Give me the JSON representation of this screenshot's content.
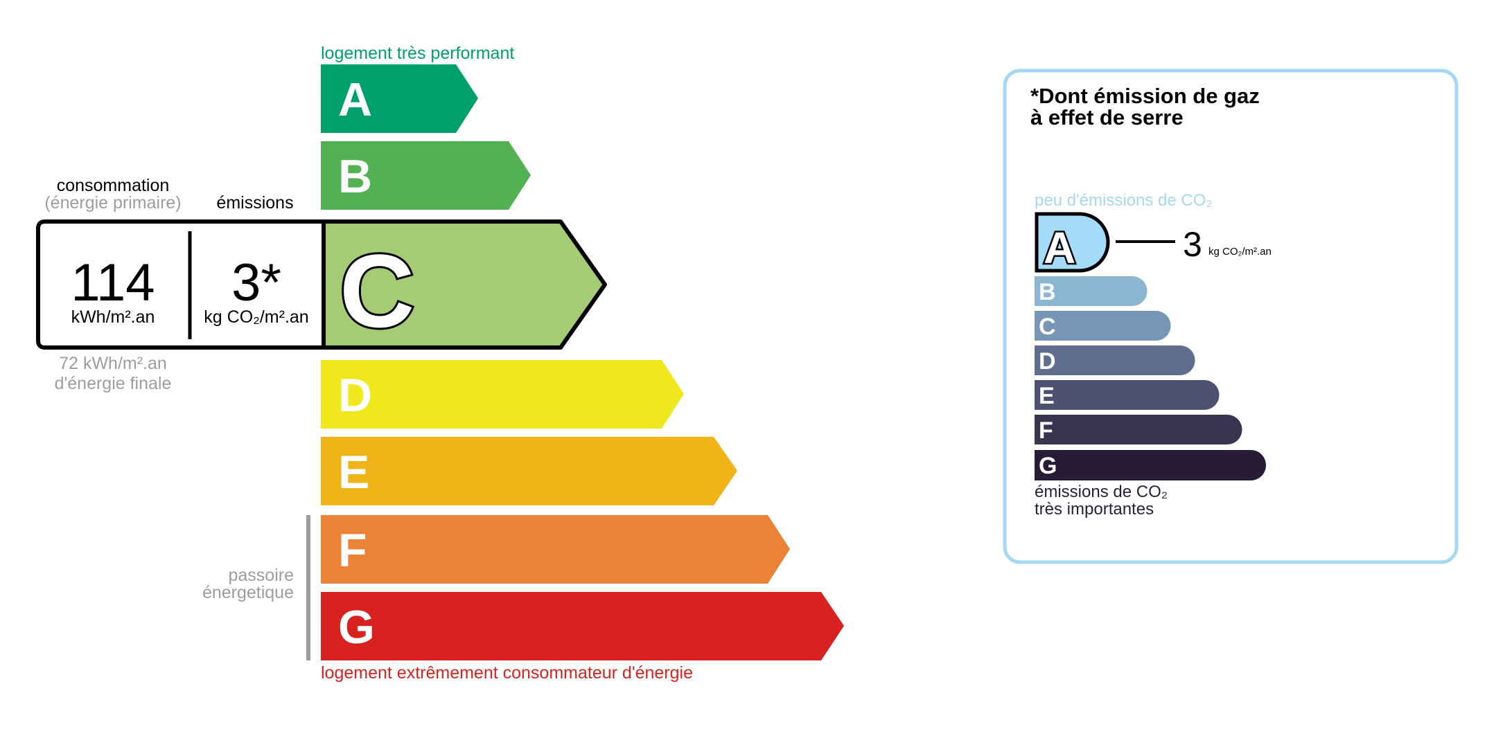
{
  "energy": {
    "top_label": "logement très performant",
    "bottom_label": "logement extrêmement consommateur d'énergie",
    "passoire_line1": "passoire",
    "passoire_line2": "énergetique",
    "classes": [
      {
        "letter": "A",
        "color": "#00a06d"
      },
      {
        "letter": "B",
        "color": "#52b153"
      },
      {
        "letter": "C",
        "color": "#a5cc74"
      },
      {
        "letter": "D",
        "color": "#f0e81d"
      },
      {
        "letter": "E",
        "color": "#f0b418"
      },
      {
        "letter": "F",
        "color": "#eb8235"
      },
      {
        "letter": "G",
        "color": "#d7221f"
      }
    ],
    "current_class": "C",
    "consumption_label": "consommation",
    "consumption_sublabel": "(énergie primaire)",
    "emissions_label": "émissions",
    "consumption_value": "114",
    "consumption_unit": "kWh/m².an",
    "emissions_value": "3*",
    "emissions_unit": "kg CO₂/m².an",
    "final_energy_line1": "72 kWh/m².an",
    "final_energy_line2": "d'énergie finale"
  },
  "ghg": {
    "title_line1": "*Dont émission de gaz",
    "title_line2": "à effet de serre",
    "top_label": "peu d'émissions de CO₂",
    "bottom_label_line1": "émissions de CO₂",
    "bottom_label_line2": "très importantes",
    "current_class": "A",
    "value": "3",
    "unit": "kg CO₂/m².an",
    "border_color": "#a5d8f3",
    "classes": [
      {
        "letter": "A",
        "color": "#a4dbf8"
      },
      {
        "letter": "B",
        "color": "#8cb4d3"
      },
      {
        "letter": "C",
        "color": "#7795b4"
      },
      {
        "letter": "D",
        "color": "#5f6e8e"
      },
      {
        "letter": "E",
        "color": "#4e5070"
      },
      {
        "letter": "F",
        "color": "#393551"
      },
      {
        "letter": "G",
        "color": "#281b35"
      }
    ]
  }
}
